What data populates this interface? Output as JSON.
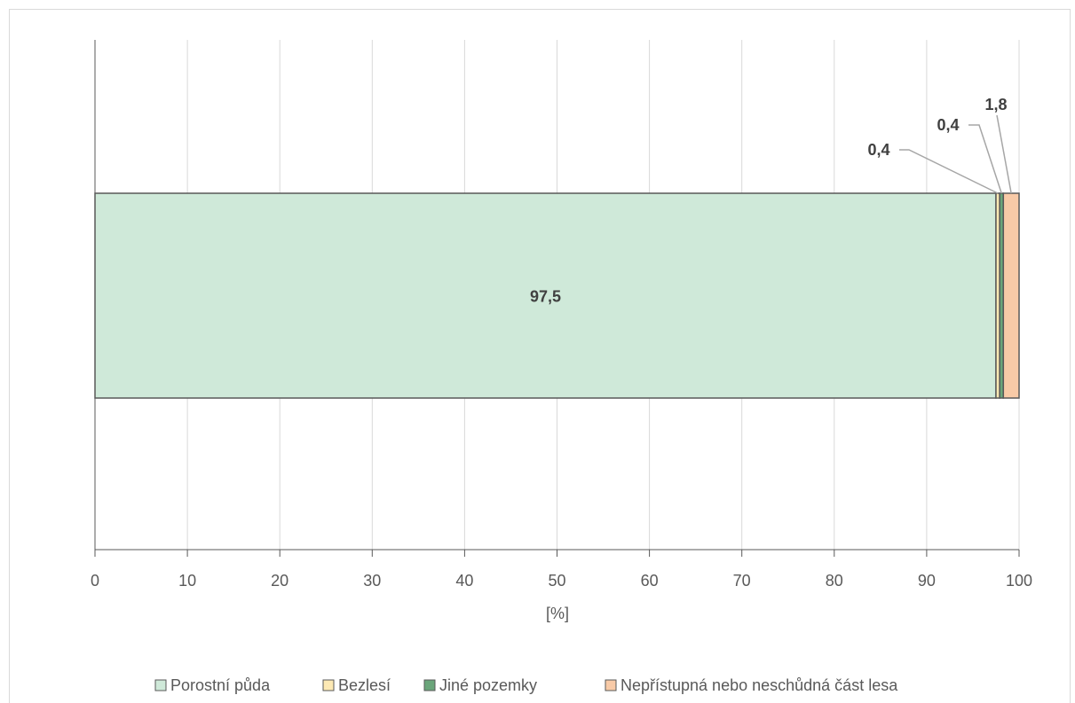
{
  "chart_data": {
    "type": "bar",
    "orientation": "horizontal",
    "stacked": true,
    "xlabel": "[%]",
    "xlim": [
      0,
      100
    ],
    "x_ticks": [
      "0",
      "10",
      "20",
      "30",
      "40",
      "50",
      "60",
      "70",
      "80",
      "90",
      "100"
    ],
    "grid": "vertical",
    "legend_position": "bottom",
    "series": [
      {
        "name": "Porostní půda",
        "value": 97.5,
        "label": "97,5",
        "color": "#cfe9d9"
      },
      {
        "name": "Bezlesí",
        "value": 0.4,
        "label": "0,4",
        "color": "#fde9b4"
      },
      {
        "name": "Jiné pozemky",
        "value": 0.4,
        "label": "0,4",
        "color": "#6aa57a"
      },
      {
        "name": "Nepřístupná nebo neschůdná část lesa",
        "value": 1.8,
        "label": "1,8",
        "color": "#f8caa7"
      }
    ]
  }
}
